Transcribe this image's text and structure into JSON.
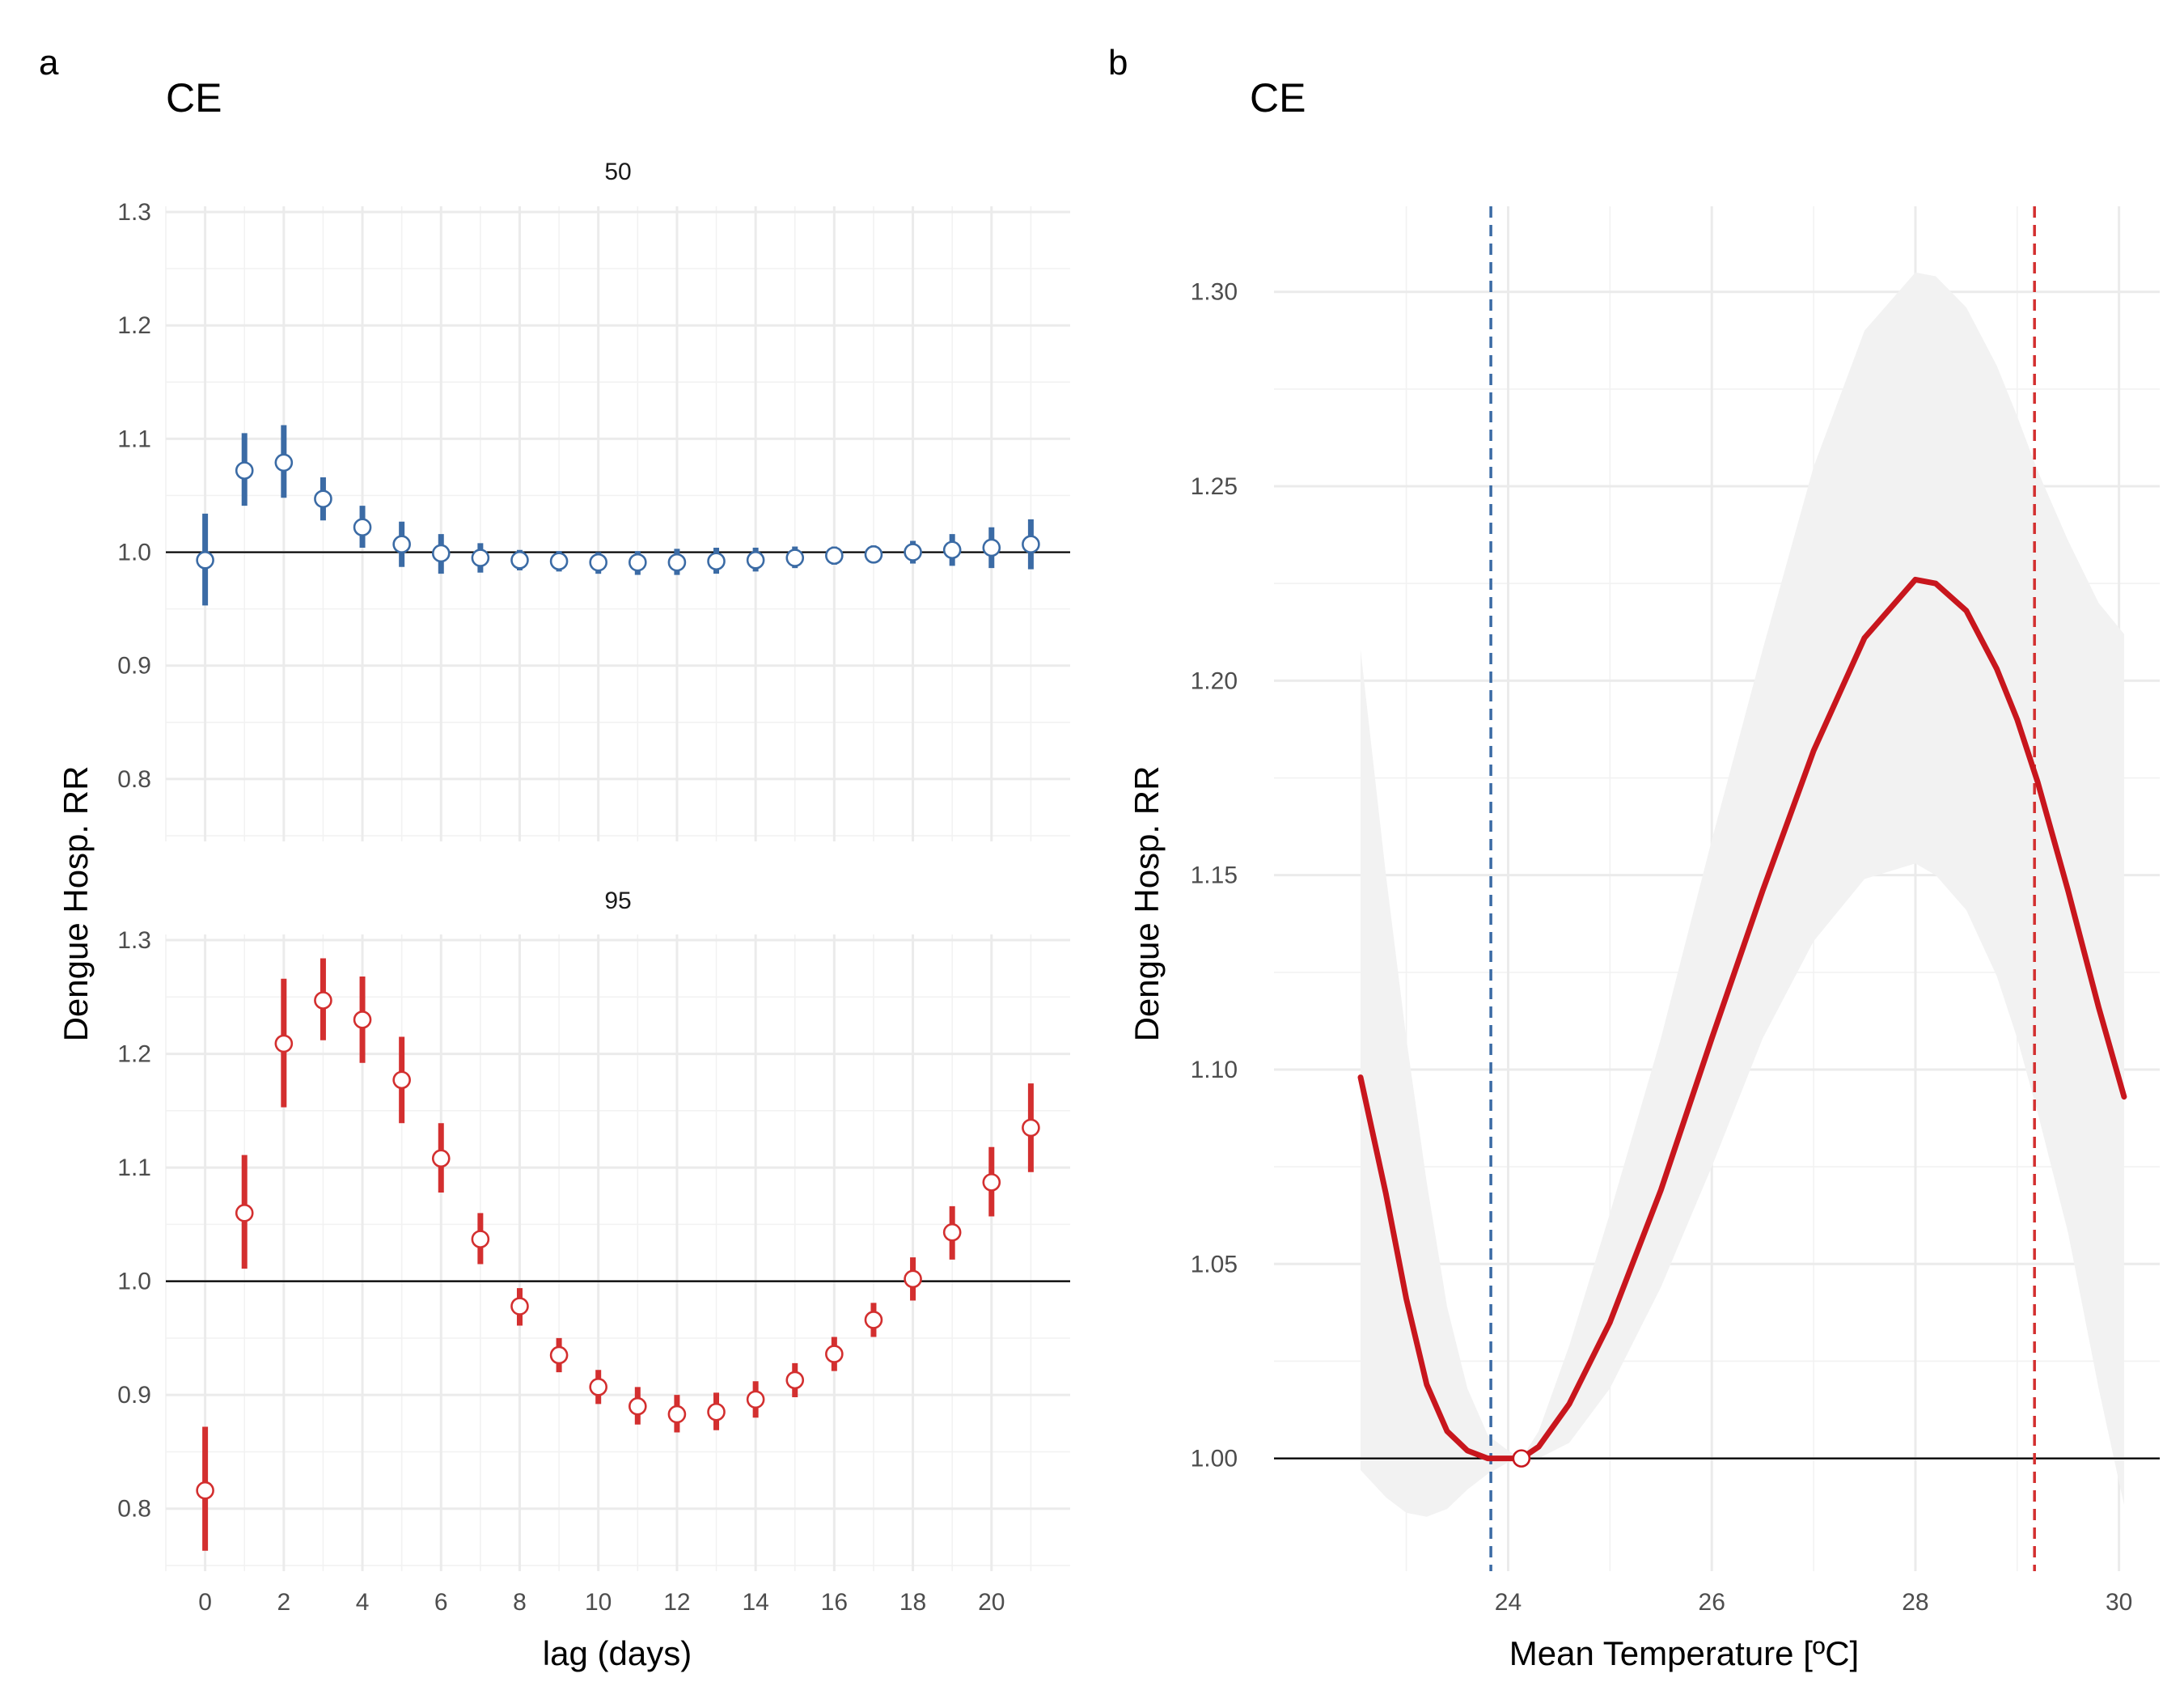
{
  "chart_data": [
    {
      "type": "scatter",
      "panel_label": "a",
      "title": "CE",
      "xlabel": "lag (days)",
      "ylabel": "Dengue Hosp. RR",
      "reference_line": 1.0,
      "facets": [
        {
          "label": "50",
          "color": "#3B6BA5",
          "xlim": [
            -1,
            22
          ],
          "ylim": [
            0.745,
            1.305
          ],
          "x_ticks": [
            0,
            2,
            4,
            6,
            8,
            10,
            12,
            14,
            16,
            18,
            20
          ],
          "y_ticks": [
            0.8,
            0.9,
            1.0,
            1.1,
            1.2,
            1.3
          ],
          "y_tick_labels": [
            "0.8",
            "0.9",
            "1.0",
            "1.1",
            "1.2",
            "1.3"
          ],
          "x": [
            0,
            1,
            2,
            3,
            4,
            5,
            6,
            7,
            8,
            9,
            10,
            11,
            12,
            13,
            14,
            15,
            16,
            17,
            18,
            19,
            20,
            21
          ],
          "y": [
            0.993,
            1.072,
            1.079,
            1.047,
            1.022,
            1.007,
            0.999,
            0.995,
            0.993,
            0.992,
            0.991,
            0.991,
            0.991,
            0.992,
            0.993,
            0.995,
            0.997,
            0.998,
            1.0,
            1.002,
            1.004,
            1.007
          ],
          "lower": [
            0.953,
            1.041,
            1.048,
            1.028,
            1.004,
            0.987,
            0.981,
            0.982,
            0.984,
            0.983,
            0.981,
            0.98,
            0.98,
            0.981,
            0.983,
            0.986,
            0.989,
            0.991,
            0.99,
            0.988,
            0.986,
            0.985
          ],
          "upper": [
            1.034,
            1.105,
            1.112,
            1.066,
            1.041,
            1.027,
            1.016,
            1.008,
            1.002,
            1.001,
            1.0,
            1.001,
            1.003,
            1.004,
            1.004,
            1.005,
            1.005,
            1.006,
            1.01,
            1.016,
            1.022,
            1.029
          ]
        },
        {
          "label": "95",
          "color": "#D32F2F",
          "xlim": [
            -1,
            22
          ],
          "ylim": [
            0.745,
            1.305
          ],
          "x_ticks": [
            0,
            2,
            4,
            6,
            8,
            10,
            12,
            14,
            16,
            18,
            20
          ],
          "y_ticks": [
            0.8,
            0.9,
            1.0,
            1.1,
            1.2,
            1.3
          ],
          "y_tick_labels": [
            "0.8",
            "0.9",
            "1.0",
            "1.1",
            "1.2",
            "1.3"
          ],
          "x": [
            0,
            1,
            2,
            3,
            4,
            5,
            6,
            7,
            8,
            9,
            10,
            11,
            12,
            13,
            14,
            15,
            16,
            17,
            18,
            19,
            20,
            21
          ],
          "y": [
            0.816,
            1.06,
            1.209,
            1.247,
            1.23,
            1.177,
            1.108,
            1.037,
            0.978,
            0.935,
            0.907,
            0.89,
            0.883,
            0.885,
            0.896,
            0.913,
            0.936,
            0.966,
            1.002,
            1.043,
            1.087,
            1.135
          ],
          "lower": [
            0.763,
            1.011,
            1.153,
            1.212,
            1.192,
            1.139,
            1.078,
            1.015,
            0.961,
            0.92,
            0.892,
            0.874,
            0.867,
            0.869,
            0.88,
            0.898,
            0.921,
            0.951,
            0.983,
            1.019,
            1.057,
            1.096
          ],
          "upper": [
            0.872,
            1.111,
            1.266,
            1.284,
            1.268,
            1.215,
            1.139,
            1.06,
            0.994,
            0.95,
            0.922,
            0.907,
            0.9,
            0.902,
            0.912,
            0.928,
            0.951,
            0.981,
            1.021,
            1.066,
            1.118,
            1.174
          ]
        }
      ]
    },
    {
      "type": "line",
      "panel_label": "b",
      "title": "CE",
      "xlabel": "Mean Temperature [ºC]",
      "ylabel": "Dengue Hosp. RR",
      "xlim": [
        21.7,
        30.4
      ],
      "ylim": [
        0.971,
        1.322
      ],
      "x_ticks": [
        24,
        26,
        28,
        30
      ],
      "y_ticks": [
        1.0,
        1.05,
        1.1,
        1.15,
        1.2,
        1.25,
        1.3
      ],
      "y_tick_labels": [
        "1.00",
        "1.05",
        "1.10",
        "1.15",
        "1.20",
        "1.25",
        "1.30"
      ],
      "reference_line": 1.0,
      "line_color": "#C8161D",
      "band_color": "#F2F2F2",
      "vlines": [
        {
          "x": 23.83,
          "color": "#3B6BA5",
          "style": "dashed"
        },
        {
          "x": 29.17,
          "color": "#D32F2F",
          "style": "dashed"
        }
      ],
      "reference_point": {
        "x": 24.13,
        "y": 1.0
      },
      "x": [
        22.55,
        22.8,
        23.0,
        23.2,
        23.4,
        23.6,
        23.8,
        24.0,
        24.13,
        24.3,
        24.6,
        25.0,
        25.5,
        26.0,
        26.5,
        27.0,
        27.5,
        28.0,
        28.2,
        28.5,
        28.8,
        29.0,
        29.2,
        29.5,
        29.8,
        30.05
      ],
      "y": [
        1.098,
        1.068,
        1.041,
        1.019,
        1.007,
        1.002,
        1.0,
        1.0,
        1.0,
        1.003,
        1.014,
        1.035,
        1.069,
        1.108,
        1.146,
        1.182,
        1.211,
        1.226,
        1.225,
        1.218,
        1.203,
        1.19,
        1.174,
        1.146,
        1.116,
        1.093
      ],
      "lower": [
        0.997,
        0.99,
        0.986,
        0.985,
        0.987,
        0.992,
        0.996,
        0.999,
        1.0,
        1.0,
        1.004,
        1.018,
        1.044,
        1.075,
        1.108,
        1.133,
        1.149,
        1.153,
        1.15,
        1.141,
        1.124,
        1.108,
        1.089,
        1.058,
        1.018,
        0.988
      ],
      "upper": [
        1.208,
        1.15,
        1.108,
        1.071,
        1.039,
        1.018,
        1.006,
        1.002,
        1.0,
        1.007,
        1.029,
        1.063,
        1.108,
        1.159,
        1.208,
        1.255,
        1.29,
        1.305,
        1.304,
        1.296,
        1.281,
        1.268,
        1.254,
        1.236,
        1.22,
        1.212
      ]
    }
  ]
}
